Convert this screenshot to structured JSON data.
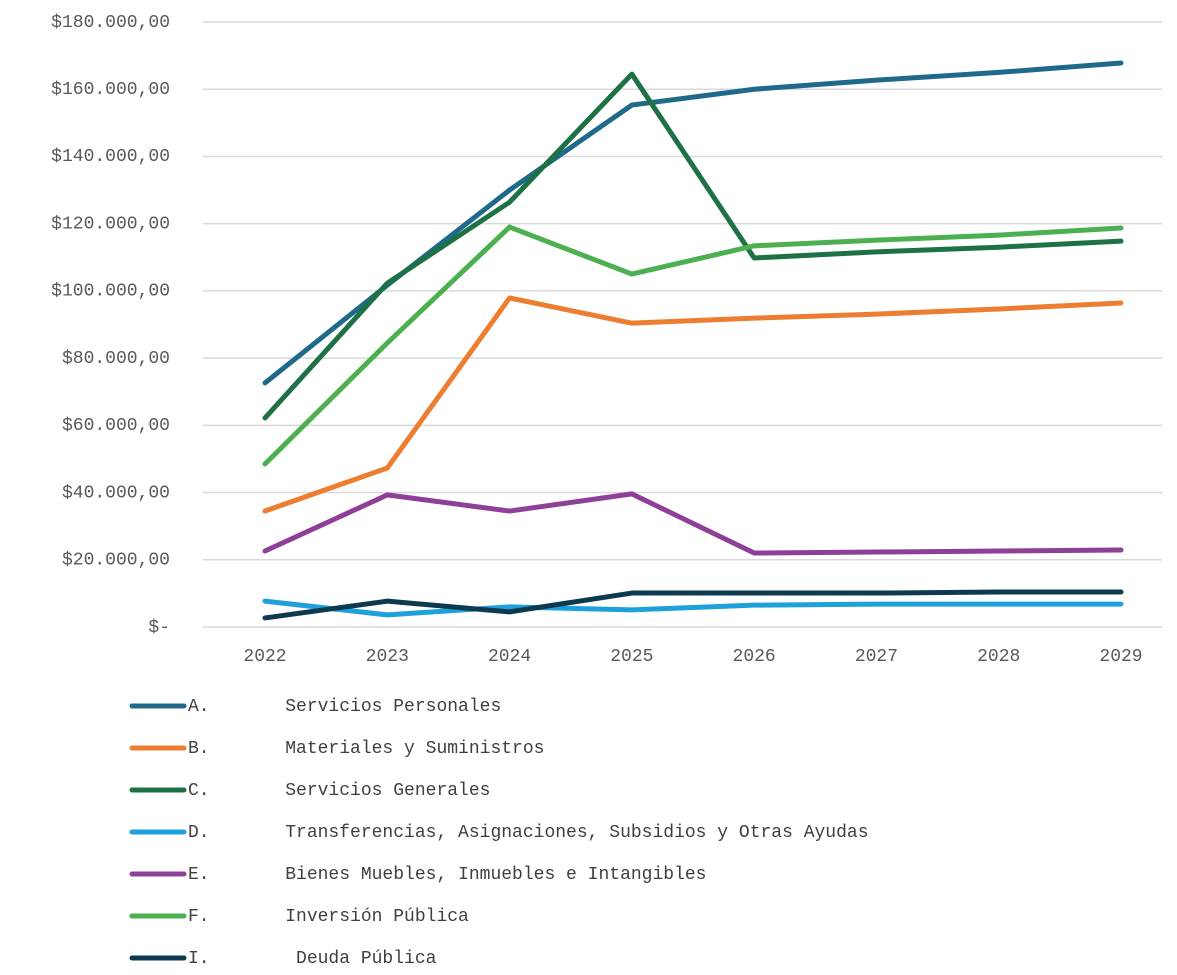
{
  "chart_data": {
    "type": "line",
    "categories": [
      "2022",
      "2023",
      "2024",
      "2025",
      "2026",
      "2027",
      "2028",
      "2029"
    ],
    "ylim": [
      0,
      180000
    ],
    "yticks": [
      {
        "value": 0,
        "label": "$-"
      },
      {
        "value": 20000,
        "label": "$20.000,00"
      },
      {
        "value": 40000,
        "label": "$40.000,00"
      },
      {
        "value": 60000,
        "label": "$60.000,00"
      },
      {
        "value": 80000,
        "label": "$80.000,00"
      },
      {
        "value": 100000,
        "label": "$100.000,00"
      },
      {
        "value": 120000,
        "label": "$120.000,00"
      },
      {
        "value": 140000,
        "label": "$140.000,00"
      },
      {
        "value": 160000,
        "label": "$160.000,00"
      },
      {
        "value": 180000,
        "label": "$180.000,00"
      }
    ],
    "grid": true,
    "legend": "bottom",
    "series": [
      {
        "name": "A.       Servicios Personales",
        "color": "#1f6a8a",
        "values": [
          72600,
          101700,
          130000,
          155300,
          160000,
          162700,
          165000,
          167800
        ]
      },
      {
        "name": "B.       Materiales y Suministros",
        "color": "#ed7d31",
        "values": [
          34500,
          47300,
          97900,
          90400,
          91900,
          93100,
          94600,
          96400
        ]
      },
      {
        "name": "C.       Servicios Generales",
        "color": "#1e7145",
        "values": [
          62200,
          102300,
          126400,
          164500,
          109800,
          111600,
          113000,
          114800
        ]
      },
      {
        "name": "D.       Transferencias, Asignaciones, Subsidios y Otras Ayudas",
        "color": "#1ea1db",
        "values": [
          7700,
          3600,
          6000,
          5100,
          6500,
          6800,
          6800,
          6800
        ]
      },
      {
        "name": "E.       Bienes Muebles, Inmuebles e Intangibles",
        "color": "#8e3f98",
        "values": [
          22600,
          39300,
          34500,
          39600,
          22000,
          22300,
          22600,
          22900
        ]
      },
      {
        "name": "F.       Inversión Pública",
        "color": "#4caf50",
        "values": [
          48500,
          84500,
          119000,
          105000,
          113400,
          115100,
          116600,
          118700
        ]
      },
      {
        "name": "I.        Deuda Pública",
        "color": "#0e3a4f",
        "values": [
          2700,
          7700,
          4500,
          10100,
          10100,
          10100,
          10400,
          10400
        ]
      }
    ]
  }
}
